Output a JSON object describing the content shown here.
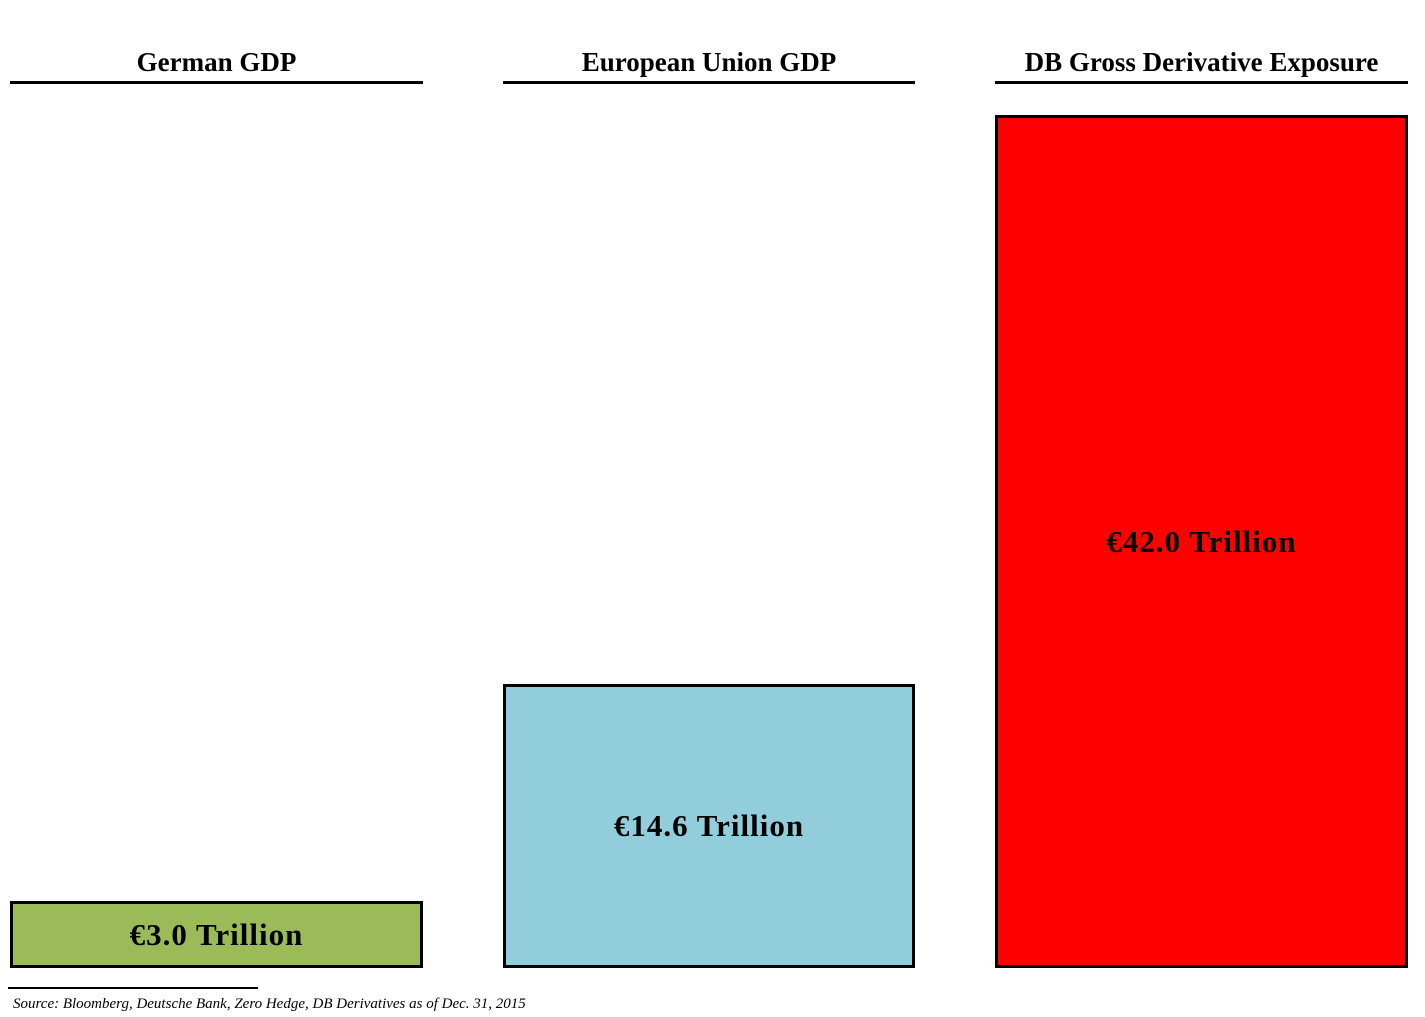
{
  "chart_data": {
    "type": "bar",
    "title": "",
    "categories": [
      "German GDP",
      "European Union GDP",
      "DB Gross Derivative Exposure"
    ],
    "values": [
      3.0,
      14.6,
      42.0
    ],
    "value_labels": [
      "€3.0 Trillion",
      "€14.6 Trillion",
      "€42.0 Trillion"
    ],
    "unit": "trillion EUR",
    "bar_colors": [
      "#9BBB59",
      "#92CDDC",
      "#FF0000"
    ],
    "bar_border_color": "#000000",
    "xlabel": "",
    "ylabel": "",
    "ylim": [
      0,
      42
    ],
    "grid": false,
    "legend": "none",
    "category_label_position": "top-underlined",
    "source_note": "Source: Bloomberg, Deutsche Bank, Zero Hedge, DB Derivatives as of  Dec. 31, 2015"
  }
}
